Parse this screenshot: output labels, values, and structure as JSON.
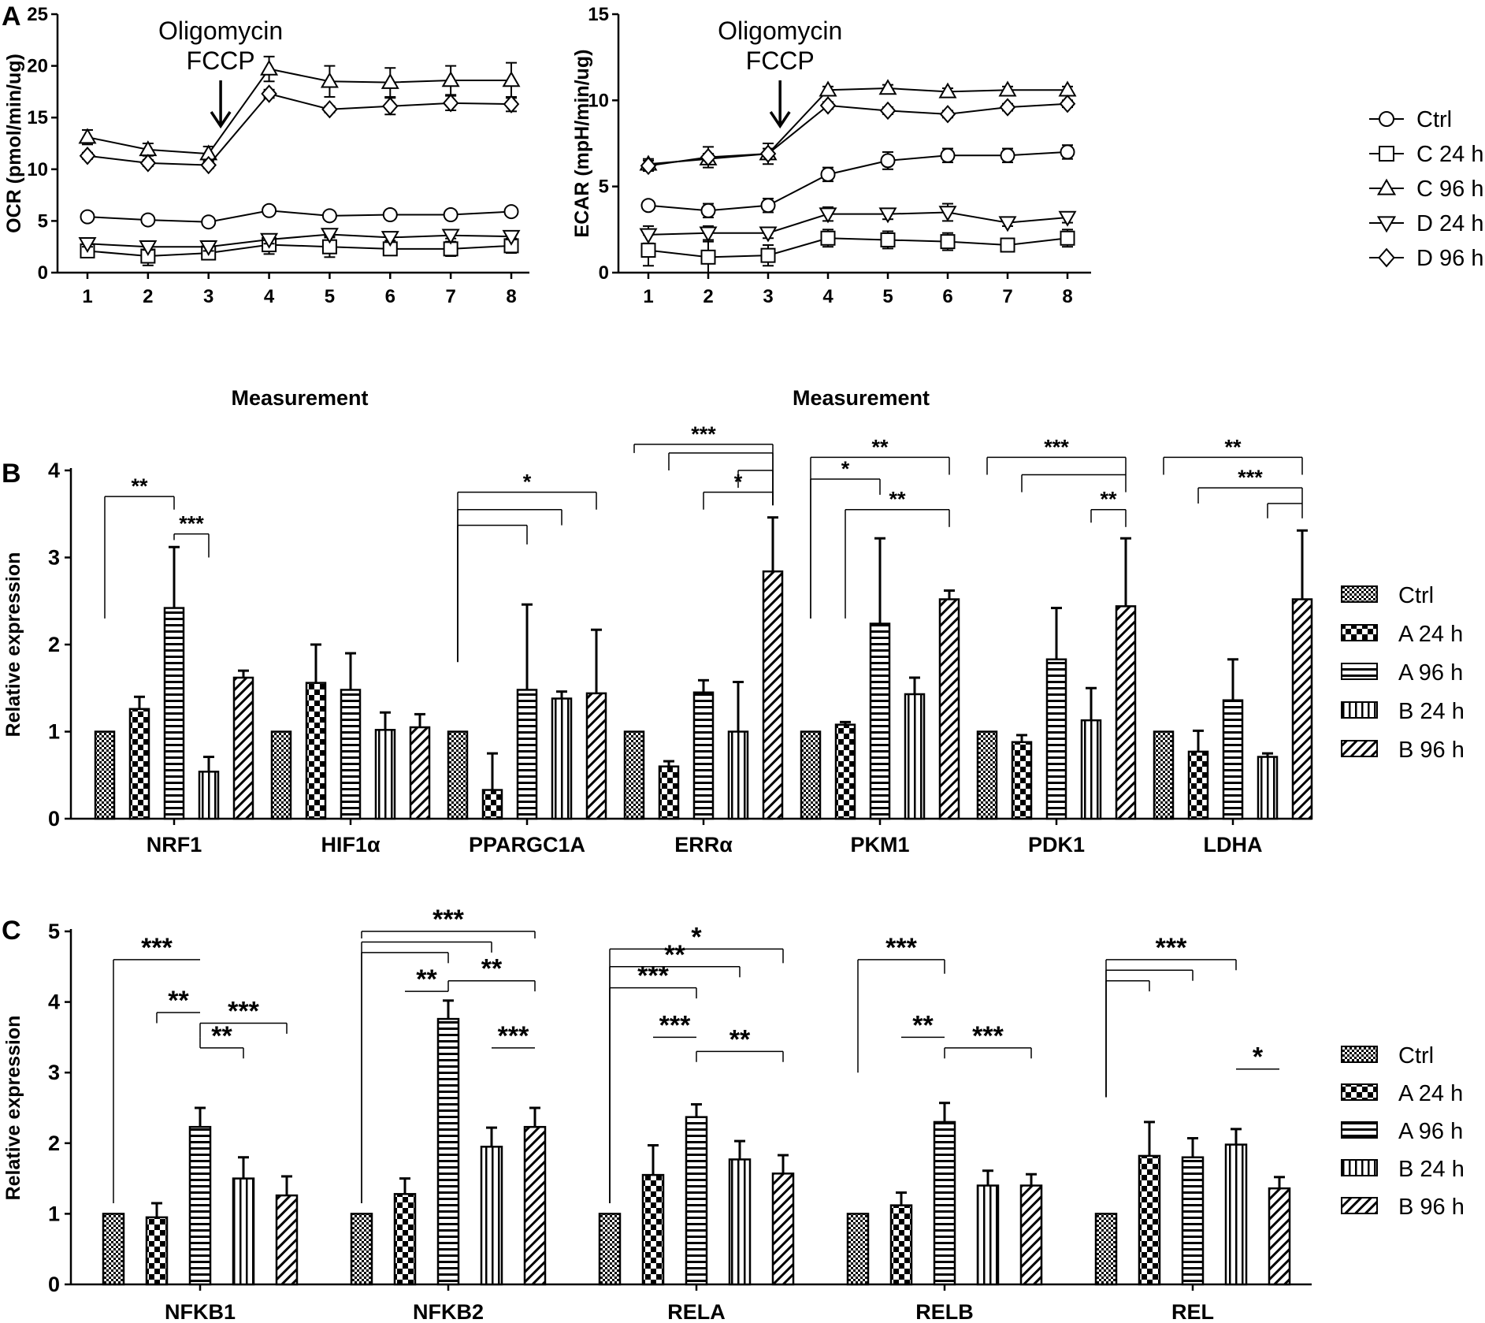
{
  "panels": {
    "a": "A",
    "b": "B",
    "c": "C"
  },
  "patterns": {
    "Ctrl": "checker",
    "A 24 h": "bigchecker",
    "A 96 h": "hlines",
    "B 24 h": "vlines",
    "B 96 h": "diag"
  },
  "colors": {
    "ink": "#000000",
    "background": "#ffffff"
  },
  "chart_data": [
    {
      "id": "ocr",
      "panel": "A",
      "type": "line",
      "xlabel": "Measurement",
      "ylabel": "OCR (pmol/min/ug)",
      "x": [
        1,
        2,
        3,
        4,
        5,
        6,
        7,
        8
      ],
      "ylim": [
        0,
        25
      ],
      "yticks": [
        0,
        5,
        10,
        15,
        20,
        25
      ],
      "annotation": {
        "lines": [
          "Oligomycin",
          "FCCP"
        ],
        "at_x": 3.2
      },
      "series": [
        {
          "name": "Ctrl",
          "marker": "circle",
          "values": [
            5.4,
            5.1,
            4.9,
            6.0,
            5.5,
            5.6,
            5.6,
            5.9
          ],
          "errors": [
            0.2,
            0.2,
            0.2,
            0.2,
            0.2,
            0.2,
            0.2,
            0.2
          ]
        },
        {
          "name": "C 24 h",
          "marker": "square",
          "values": [
            2.1,
            1.6,
            1.9,
            2.7,
            2.5,
            2.3,
            2.3,
            2.6
          ],
          "errors": [
            0.6,
            0.9,
            0.6,
            0.9,
            1.0,
            0.6,
            0.7,
            0.7
          ]
        },
        {
          "name": "C 96 h",
          "marker": "triangle-up",
          "values": [
            13.1,
            11.9,
            11.5,
            19.7,
            18.5,
            18.4,
            18.6,
            18.6
          ],
          "errors": [
            0.7,
            0.6,
            0.7,
            1.2,
            1.5,
            1.4,
            1.4,
            1.7
          ]
        },
        {
          "name": "D 24 h",
          "marker": "triangle-down",
          "values": [
            2.8,
            2.5,
            2.5,
            3.2,
            3.7,
            3.4,
            3.6,
            3.5
          ],
          "errors": [
            0.3,
            0.3,
            0.4,
            0.4,
            0.3,
            0.3,
            0.3,
            0.3
          ]
        },
        {
          "name": "D 96 h",
          "marker": "diamond",
          "values": [
            11.3,
            10.6,
            10.4,
            17.3,
            15.8,
            16.1,
            16.4,
            16.3
          ],
          "errors": [
            0.3,
            0.3,
            0.3,
            0.4,
            0.3,
            0.8,
            0.7,
            0.7
          ]
        }
      ]
    },
    {
      "id": "ecar",
      "panel": "A",
      "type": "line",
      "xlabel": "Measurement",
      "ylabel": "ECAR (mpH/min/ug)",
      "x": [
        1,
        2,
        3,
        4,
        5,
        6,
        7,
        8
      ],
      "ylim": [
        0,
        15
      ],
      "yticks": [
        0,
        5,
        10,
        15
      ],
      "annotation": {
        "lines": [
          "Oligomycin",
          "FCCP"
        ],
        "at_x": 3.2
      },
      "legend": [
        "Ctrl",
        "C 24 h",
        "C 96 h",
        "D 24 h",
        "D 96 h"
      ],
      "series": [
        {
          "name": "Ctrl",
          "marker": "circle",
          "values": [
            3.9,
            3.6,
            3.9,
            5.7,
            6.5,
            6.8,
            6.8,
            7.0
          ],
          "errors": [
            0.2,
            0.4,
            0.4,
            0.4,
            0.5,
            0.4,
            0.4,
            0.4
          ]
        },
        {
          "name": "C 24 h",
          "marker": "square",
          "values": [
            1.3,
            0.9,
            1.0,
            2.0,
            1.9,
            1.8,
            1.6,
            2.0
          ],
          "errors": [
            0.9,
            0.9,
            0.6,
            0.5,
            0.5,
            0.5,
            0.2,
            0.5
          ]
        },
        {
          "name": "C 96 h",
          "marker": "triangle-up",
          "values": [
            6.3,
            6.6,
            6.9,
            10.6,
            10.7,
            10.5,
            10.6,
            10.6
          ],
          "errors": [
            0.3,
            0.3,
            0.3,
            0.2,
            0.2,
            0.2,
            0.2,
            0.2
          ]
        },
        {
          "name": "D 24 h",
          "marker": "triangle-down",
          "values": [
            2.2,
            2.3,
            2.3,
            3.4,
            3.4,
            3.5,
            2.9,
            3.2
          ],
          "errors": [
            0.5,
            0.4,
            0.3,
            0.4,
            0.3,
            0.5,
            0.2,
            0.3
          ]
        },
        {
          "name": "D 96 h",
          "marker": "diamond",
          "values": [
            6.2,
            6.7,
            6.9,
            9.7,
            9.4,
            9.2,
            9.6,
            9.8
          ],
          "errors": [
            0.3,
            0.6,
            0.6,
            0.2,
            0.2,
            0.2,
            0.2,
            0.2
          ]
        }
      ]
    },
    {
      "id": "genes-b",
      "panel": "B",
      "type": "bar",
      "ylabel": "Relative expression",
      "ylim": [
        0,
        4
      ],
      "yticks": [
        0,
        1,
        2,
        3,
        4
      ],
      "legend": [
        "Ctrl",
        "A 24 h",
        "A 96 h",
        "B 24 h",
        "B 96 h"
      ],
      "categories": [
        "NRF1",
        "HIF1α",
        "PPARGC1A",
        "ERRα",
        "PKM1",
        "PDK1",
        "LDHA"
      ],
      "series": [
        {
          "name": "Ctrl",
          "values": [
            1,
            1,
            1,
            1,
            1,
            1,
            1
          ],
          "errors": [
            0,
            0,
            0,
            0,
            0,
            0,
            0
          ]
        },
        {
          "name": "A 24 h",
          "values": [
            1.26,
            1.56,
            0.33,
            0.6,
            1.08,
            0.88,
            0.77
          ],
          "errors": [
            0.14,
            0.44,
            0.42,
            0.06,
            0.03,
            0.08,
            0.24
          ]
        },
        {
          "name": "A 96 h",
          "values": [
            2.42,
            1.48,
            1.48,
            1.45,
            2.24,
            1.83,
            1.36
          ],
          "errors": [
            0.7,
            0.42,
            0.98,
            0.14,
            0.98,
            0.59,
            0.47
          ]
        },
        {
          "name": "B 24 h",
          "values": [
            0.54,
            1.02,
            1.38,
            1.0,
            1.43,
            1.13,
            0.71
          ],
          "errors": [
            0.17,
            0.2,
            0.08,
            0.57,
            0.19,
            0.37,
            0.04
          ]
        },
        {
          "name": "B 96 h",
          "values": [
            1.62,
            1.05,
            1.44,
            2.84,
            2.52,
            2.44,
            2.52
          ],
          "errors": [
            0.08,
            0.15,
            0.73,
            0.62,
            0.1,
            0.78,
            0.79
          ]
        }
      ],
      "significance": [
        {
          "cat": 0,
          "from": 0,
          "to": 2,
          "y": 3.7,
          "label": "**",
          "drop_from": 2.3,
          "drop_to": 3.55
        },
        {
          "cat": 0,
          "from": 2,
          "to": 3,
          "y": 3.27,
          "label": "***",
          "drop_from": 3.2,
          "drop_to": 3.0
        },
        {
          "cat": 2,
          "from": 0,
          "to": 4,
          "y": 3.75,
          "label": "*",
          "drop_from": 1.8,
          "drop_to": 3.55
        },
        {
          "cat": 2,
          "from": 0,
          "to": 3,
          "y": 3.55,
          "label": "",
          "drop_from": 1.8,
          "drop_to": 3.37
        },
        {
          "cat": 2,
          "from": 0,
          "to": 2,
          "y": 3.37,
          "label": "",
          "drop_from": 1.8,
          "drop_to": 3.15
        },
        {
          "cat": 3,
          "from": 0,
          "to": 4,
          "y": 4.3,
          "label": "***",
          "drop_from": 4.2,
          "drop_to": 3.6
        },
        {
          "cat": 3,
          "from": 1,
          "to": 4,
          "y": 4.2,
          "label": "",
          "drop_from": 4.0,
          "drop_to": 3.6
        },
        {
          "cat": 3,
          "from": 3,
          "to": 4,
          "y": 4.0,
          "label": "",
          "drop_from": 3.8,
          "drop_to": 3.6
        },
        {
          "cat": 3,
          "from": 2,
          "to": 4,
          "y": 3.75,
          "label": "*",
          "drop_from": 3.55,
          "drop_to": 3.6
        },
        {
          "cat": 4,
          "from": 0,
          "to": 4,
          "y": 4.15,
          "label": "**",
          "drop_from": 2.3,
          "drop_to": 3.95
        },
        {
          "cat": 4,
          "from": 0,
          "to": 2,
          "y": 3.9,
          "label": "*",
          "drop_from": 2.3,
          "drop_to": 3.72
        },
        {
          "cat": 4,
          "from": 1,
          "to": 4,
          "y": 3.55,
          "label": "**",
          "drop_from": 2.3,
          "drop_to": 3.35
        },
        {
          "cat": 5,
          "from": 0,
          "to": 4,
          "y": 4.15,
          "label": "***",
          "drop_from": 3.95,
          "drop_to": 3.95
        },
        {
          "cat": 5,
          "from": 1,
          "to": 4,
          "y": 3.95,
          "label": "",
          "drop_from": 3.75,
          "drop_to": 3.75
        },
        {
          "cat": 5,
          "from": 3,
          "to": 4,
          "y": 3.55,
          "label": "**",
          "drop_from": 3.4,
          "drop_to": 3.35
        },
        {
          "cat": 6,
          "from": 0,
          "to": 4,
          "y": 4.15,
          "label": "**",
          "drop_from": 3.95,
          "drop_to": 3.95
        },
        {
          "cat": 6,
          "from": 1,
          "to": 4,
          "y": 3.8,
          "label": "***",
          "drop_from": 3.62,
          "drop_to": 3.62
        },
        {
          "cat": 6,
          "from": 3,
          "to": 4,
          "y": 3.62,
          "label": "",
          "drop_from": 3.45,
          "drop_to": 3.45
        }
      ]
    },
    {
      "id": "genes-c",
      "panel": "C",
      "type": "bar",
      "ylabel": "Relative expression",
      "ylim": [
        0,
        5
      ],
      "yticks": [
        0,
        1,
        2,
        3,
        4,
        5
      ],
      "legend": [
        "Ctrl",
        "A 24 h",
        "A 96 h",
        "B 24 h",
        "B 96 h"
      ],
      "categories": [
        "NFKB1",
        "NFKB2",
        "RELA",
        "RELB",
        "REL"
      ],
      "series": [
        {
          "name": "Ctrl",
          "values": [
            1,
            1,
            1,
            1,
            1
          ],
          "errors": [
            0,
            0,
            0,
            0,
            0
          ]
        },
        {
          "name": "A 24 h",
          "values": [
            0.95,
            1.28,
            1.55,
            1.12,
            1.82
          ],
          "errors": [
            0.2,
            0.22,
            0.42,
            0.18,
            0.48
          ]
        },
        {
          "name": "A 96 h",
          "values": [
            2.23,
            3.76,
            2.37,
            2.3,
            1.8
          ],
          "errors": [
            0.27,
            0.26,
            0.18,
            0.27,
            0.27
          ]
        },
        {
          "name": "B 24 h",
          "values": [
            1.5,
            1.95,
            1.77,
            1.4,
            1.98
          ],
          "errors": [
            0.3,
            0.27,
            0.26,
            0.21,
            0.22
          ]
        },
        {
          "name": "B 96 h",
          "values": [
            1.26,
            2.23,
            1.57,
            1.4,
            1.36
          ],
          "errors": [
            0.27,
            0.27,
            0.26,
            0.16,
            0.16
          ]
        }
      ],
      "significance": [
        {
          "cat": 0,
          "from": 0,
          "to": 2,
          "y": 4.6,
          "label": "***",
          "drop_from": 1.15,
          "drop_to": 4.6
        },
        {
          "cat": 0,
          "from": 1,
          "to": 2,
          "y": 3.85,
          "label": "**",
          "drop_from": 3.7,
          "drop_to": 3.85
        },
        {
          "cat": 0,
          "from": 2,
          "to": 4,
          "y": 3.7,
          "label": "***",
          "drop_from": 3.5,
          "drop_to": 3.55
        },
        {
          "cat": 0,
          "from": 2,
          "to": 3,
          "y": 3.35,
          "label": "**",
          "drop_from": 3.5,
          "drop_to": 3.2
        },
        {
          "cat": 1,
          "from": 0,
          "to": 4,
          "y": 5.0,
          "label": "***",
          "drop_from": 4.9,
          "drop_to": 4.9
        },
        {
          "cat": 1,
          "from": 0,
          "to": 3,
          "y": 4.85,
          "label": "",
          "drop_from": 1.15,
          "drop_to": 4.7
        },
        {
          "cat": 1,
          "from": 0,
          "to": 2,
          "y": 4.7,
          "label": "",
          "drop_from": 1.15,
          "drop_to": 4.55
        },
        {
          "cat": 1,
          "from": 1,
          "to": 2,
          "y": 4.15,
          "label": "**",
          "drop_from": 4.15,
          "drop_to": 4.15
        },
        {
          "cat": 1,
          "from": 2,
          "to": 4,
          "y": 4.3,
          "label": "**",
          "drop_from": 4.15,
          "drop_to": 4.15
        },
        {
          "cat": 1,
          "from": 3,
          "to": 4,
          "y": 3.35,
          "label": "***",
          "drop_from": 3.35,
          "drop_to": 3.35
        },
        {
          "cat": 2,
          "from": 0,
          "to": 4,
          "y": 4.75,
          "label": "*",
          "drop_from": 1.15,
          "drop_to": 4.55
        },
        {
          "cat": 2,
          "from": 0,
          "to": 3,
          "y": 4.5,
          "label": "**",
          "drop_from": 1.15,
          "drop_to": 4.35
        },
        {
          "cat": 2,
          "from": 0,
          "to": 2,
          "y": 4.2,
          "label": "***",
          "drop_from": 1.15,
          "drop_to": 4.05
        },
        {
          "cat": 2,
          "from": 1,
          "to": 2,
          "y": 3.5,
          "label": "***",
          "drop_from": 3.5,
          "drop_to": 3.5
        },
        {
          "cat": 2,
          "from": 2,
          "to": 4,
          "y": 3.3,
          "label": "**",
          "drop_from": 3.15,
          "drop_to": 3.15
        },
        {
          "cat": 3,
          "from": 0,
          "to": 2,
          "y": 4.6,
          "label": "***",
          "drop_from": 3.0,
          "drop_to": 4.4
        },
        {
          "cat": 3,
          "from": 1,
          "to": 2,
          "y": 3.5,
          "label": "**",
          "drop_from": 3.5,
          "drop_to": 3.5
        },
        {
          "cat": 3,
          "from": 2,
          "to": 4,
          "y": 3.35,
          "label": "***",
          "drop_from": 3.2,
          "drop_to": 3.2
        },
        {
          "cat": 4,
          "from": 0,
          "to": 3,
          "y": 4.6,
          "label": "***",
          "drop_from": 2.65,
          "drop_to": 4.45
        },
        {
          "cat": 4,
          "from": 0,
          "to": 2,
          "y": 4.45,
          "label": "",
          "drop_from": 2.65,
          "drop_to": 4.3
        },
        {
          "cat": 4,
          "from": 0,
          "to": 1,
          "y": 4.3,
          "label": "",
          "drop_from": 2.65,
          "drop_to": 4.15
        },
        {
          "cat": 4,
          "from": 3,
          "to": 4,
          "y": 3.05,
          "label": "*",
          "drop_from": 3.05,
          "drop_to": 3.05
        }
      ]
    }
  ]
}
